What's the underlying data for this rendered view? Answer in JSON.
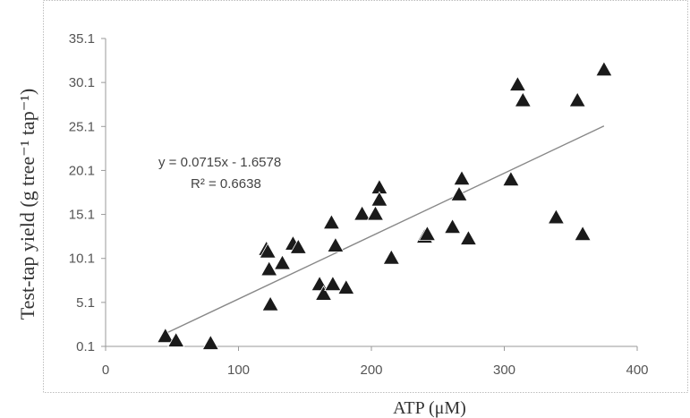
{
  "chart_data": {
    "type": "scatter",
    "xlabel": "ATP (μM)",
    "ylabel": "Test-tap yield (g tree⁻¹ tap⁻¹)",
    "xlim": [
      0,
      400
    ],
    "ylim": [
      0.1,
      35.1
    ],
    "x_ticks": [
      0,
      100,
      200,
      300,
      400
    ],
    "y_ticks": [
      0.1,
      5.1,
      10.1,
      15.1,
      20.1,
      25.1,
      30.1,
      35.1
    ],
    "x_tick_labels": [
      "0",
      "100",
      "200",
      "300",
      "400"
    ],
    "y_tick_labels": [
      "0.1",
      "5.1",
      "10.1",
      "15.1",
      "20.1",
      "25.1",
      "30.1",
      "35.1"
    ],
    "grid": false,
    "marker": "triangle",
    "marker_color": "#1a1a1a",
    "trendline": {
      "slope": 0.0715,
      "intercept": -1.6578,
      "x_range": [
        45,
        375
      ],
      "color": "#888888"
    },
    "annotations": {
      "equation": "y = 0.0715x - 1.6578",
      "r_squared": "R² = 0.6638"
    },
    "points": [
      {
        "x": 45,
        "y": 1.2
      },
      {
        "x": 53,
        "y": 0.7
      },
      {
        "x": 79,
        "y": 0.4
      },
      {
        "x": 121,
        "y": 11.1
      },
      {
        "x": 122,
        "y": 10.8
      },
      {
        "x": 123,
        "y": 8.8
      },
      {
        "x": 124,
        "y": 4.8
      },
      {
        "x": 133,
        "y": 9.5
      },
      {
        "x": 141,
        "y": 11.7
      },
      {
        "x": 145,
        "y": 11.3
      },
      {
        "x": 161,
        "y": 7.1
      },
      {
        "x": 164,
        "y": 6.0
      },
      {
        "x": 170,
        "y": 14.1
      },
      {
        "x": 171,
        "y": 7.1
      },
      {
        "x": 173,
        "y": 11.5
      },
      {
        "x": 181,
        "y": 6.7
      },
      {
        "x": 193,
        "y": 15.1
      },
      {
        "x": 203,
        "y": 15.1
      },
      {
        "x": 206,
        "y": 18.1
      },
      {
        "x": 206,
        "y": 16.7
      },
      {
        "x": 215,
        "y": 10.1
      },
      {
        "x": 240,
        "y": 12.5
      },
      {
        "x": 242,
        "y": 12.8
      },
      {
        "x": 261,
        "y": 13.6
      },
      {
        "x": 266,
        "y": 17.3
      },
      {
        "x": 268,
        "y": 19.1
      },
      {
        "x": 273,
        "y": 12.3
      },
      {
        "x": 305,
        "y": 19.0
      },
      {
        "x": 310,
        "y": 29.8
      },
      {
        "x": 314,
        "y": 28.0
      },
      {
        "x": 339,
        "y": 14.7
      },
      {
        "x": 355,
        "y": 28.0
      },
      {
        "x": 359,
        "y": 12.8
      },
      {
        "x": 375,
        "y": 31.5
      }
    ]
  }
}
